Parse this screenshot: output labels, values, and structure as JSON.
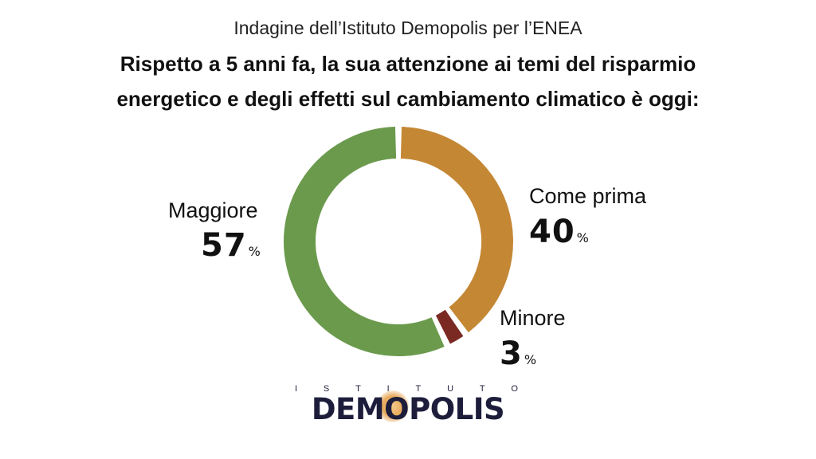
{
  "subtitle": "Indagine dell’Istituto Demopolis per l’ENEA",
  "title_line1": "Rispetto a 5 anni fa, la sua attenzione ai temi del risparmio",
  "title_line2": "energetico e degli effetti sul cambiamento climatico è oggi:",
  "chart_data": {
    "type": "pie",
    "donut": true,
    "title": "Rispetto a 5 anni fa, la sua attenzione ai temi del risparmio energetico e degli effetti sul cambiamento climatico è oggi:",
    "unit": "%",
    "categories": [
      "Come prima",
      "Minore",
      "Maggiore"
    ],
    "values": [
      40,
      3,
      57
    ],
    "colors": [
      "#c48734",
      "#7b2a23",
      "#6b9a4d"
    ]
  },
  "labels": {
    "maggiore": {
      "name": "Maggiore",
      "value": "57",
      "unit": "%"
    },
    "come_prima": {
      "name": "Come prima",
      "value": "40",
      "unit": "%"
    },
    "minore": {
      "name": "Minore",
      "value": "3",
      "unit": "%"
    }
  },
  "logo": {
    "top_letters": [
      "I",
      "S",
      "T",
      "I",
      "T",
      "U",
      "T",
      "O"
    ],
    "main_text": "DEMOPOLIS",
    "brand_color": "#1d1d3b"
  }
}
